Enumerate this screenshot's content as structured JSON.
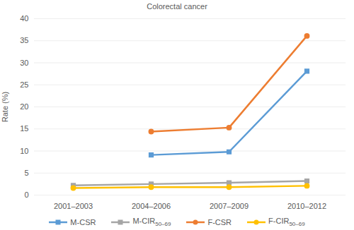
{
  "chart_data": {
    "type": "line",
    "title": "Colorectal cancer",
    "categories": [
      "2001–2003",
      "2004–2006",
      "2007–2009",
      "2010–2012"
    ],
    "y_label": "Rate (%)",
    "ylim": [
      0,
      40
    ],
    "yticks": [
      0,
      5,
      10,
      15,
      20,
      25,
      30,
      35,
      40
    ],
    "grid": true,
    "legend": "bottom",
    "series": [
      {
        "name": "M-CSR",
        "color": "#5B9BD5",
        "marker": "square",
        "values": [
          null,
          9.1,
          9.8,
          28.1
        ]
      },
      {
        "name": "M-CIR50–69",
        "color": "#A5A5A5",
        "marker": "square",
        "values": [
          2.2,
          2.5,
          2.8,
          3.2
        ]
      },
      {
        "name": "F-CSR",
        "color": "#ED7D31",
        "marker": "circle",
        "values": [
          null,
          14.4,
          15.3,
          36.1
        ]
      },
      {
        "name": "F-CIR50–69",
        "color": "#FFC000",
        "marker": "circle",
        "values": [
          1.6,
          1.8,
          1.8,
          2.1
        ]
      }
    ]
  }
}
